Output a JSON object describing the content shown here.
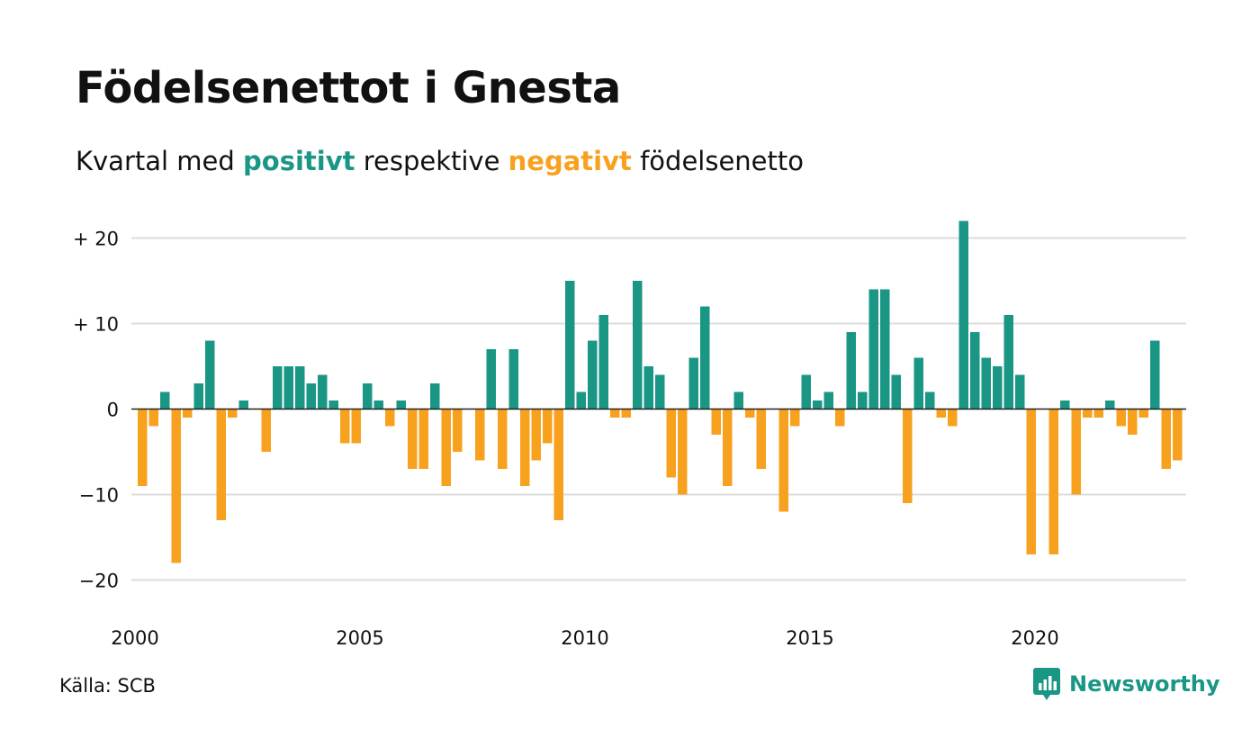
{
  "header": {
    "title": "Födelsenettot i Gnesta",
    "subtitle_pre": "Kvartal med",
    "subtitle_pos": "positivt",
    "subtitle_mid": "respektive",
    "subtitle_neg": "negativt",
    "subtitle_post": "födelsenetto"
  },
  "footer": {
    "source": "Källa: SCB",
    "brand": "Newsworthy"
  },
  "colors": {
    "positive": "#1a9685",
    "negative": "#f7a11e",
    "grid": "#dcdcdc",
    "zero": "#222222",
    "logo": "#1a9685"
  },
  "icons": {
    "logo": "chart-speech-bubble-icon"
  },
  "chart_data": {
    "type": "bar",
    "frequency": "quarterly",
    "start": "2000 Q1",
    "xticks": [
      "2000",
      "2005",
      "2010",
      "2015",
      "2020"
    ],
    "yticks": [
      20,
      10,
      0,
      -10,
      -20
    ],
    "ytick_labels": [
      "+ 20",
      "+ 10",
      "0",
      "−10",
      "−20"
    ],
    "ylim": [
      -22,
      24
    ],
    "grid": true,
    "values": [
      -9,
      -2,
      2,
      -18,
      -1,
      3,
      8,
      -13,
      -1,
      1,
      0,
      -5,
      5,
      5,
      5,
      3,
      4,
      1,
      -4,
      -4,
      3,
      1,
      -2,
      1,
      -7,
      -7,
      3,
      -9,
      -5,
      0,
      -6,
      7,
      -7,
      7,
      -9,
      -6,
      -4,
      -13,
      15,
      2,
      8,
      11,
      -1,
      -1,
      15,
      5,
      4,
      -8,
      -10,
      6,
      12,
      -3,
      -9,
      2,
      -1,
      -7,
      0,
      -12,
      -2,
      4,
      1,
      2,
      -2,
      9,
      2,
      14,
      14,
      4,
      -11,
      6,
      2,
      -1,
      -2,
      22,
      9,
      6,
      5,
      11,
      4,
      -17,
      0,
      -17,
      1,
      -10,
      -1,
      -1,
      1,
      -2,
      -3,
      -1,
      8,
      -7,
      -6
    ]
  }
}
